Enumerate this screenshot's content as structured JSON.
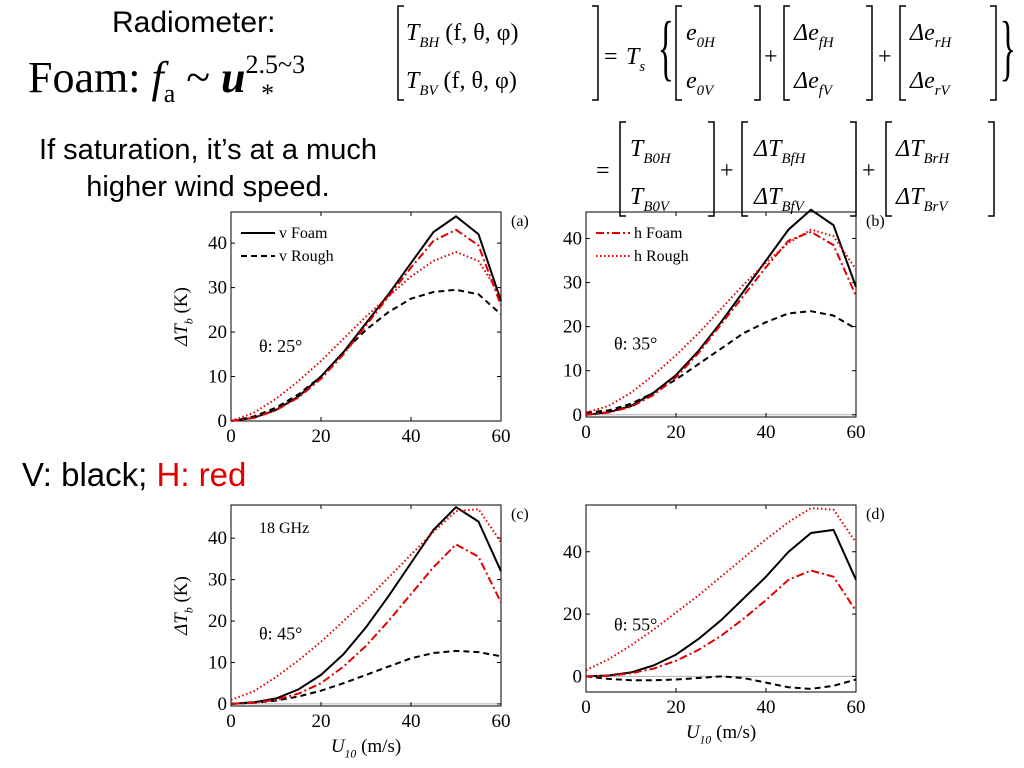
{
  "header": {
    "radiometer_label": "Radiometer:",
    "foam_label": "Foam:",
    "foam_var": "f",
    "foam_sub": "a",
    "foam_rel": "~",
    "foam_u": "u",
    "foam_exponent": "2.5~3",
    "foam_u_sub": "*",
    "saturation_note": "If saturation, it’s at a much higher wind speed.",
    "legend_black": "V: black;",
    "legend_red": "H: red"
  },
  "equation": {
    "lhs_top": "T_BH (f, θ, φ)",
    "lhs_bottom": "T_BV (f, θ, φ)",
    "ts": "T_s",
    "e0": [
      "e_0H",
      "e_0V"
    ],
    "def": [
      "Δe_fH",
      "Δe_fV"
    ],
    "der": [
      "Δe_rH",
      "Δe_rV"
    ],
    "tb0": [
      "T_B0H",
      "T_B0V"
    ],
    "dtbf": [
      "ΔT_BfH",
      "ΔT_BfV"
    ],
    "dtbr": [
      "ΔT_BrH",
      "ΔT_BrV"
    ]
  },
  "colors": {
    "black": "#000000",
    "red": "#e00000",
    "zero_line": "#b0b0b0"
  },
  "chart_data": [
    {
      "type": "line",
      "panel_tag": "(a)",
      "annotation": "θ: 25°",
      "xlabel": "",
      "ylabel": "ΔT_b (K)",
      "xlim": [
        0,
        60
      ],
      "ylim": [
        0,
        47
      ],
      "xticks": [
        0,
        20,
        40,
        60
      ],
      "yticks": [
        0,
        10,
        20,
        30,
        40
      ],
      "legend": [
        {
          "label": "v Foam",
          "series": "v Foam"
        },
        {
          "label": "v Rough",
          "series": "v Rough"
        }
      ],
      "series": [
        {
          "name": "v Foam",
          "color": "#000000",
          "dash": "solid",
          "x": [
            0,
            5,
            10,
            15,
            20,
            25,
            30,
            35,
            40,
            45,
            50,
            55,
            60
          ],
          "y": [
            0,
            0.7,
            2.5,
            5.5,
            10,
            15.5,
            22,
            28.5,
            35.5,
            42.5,
            46,
            42,
            27
          ]
        },
        {
          "name": "v Rough",
          "color": "#000000",
          "dash": "dashed",
          "x": [
            0,
            5,
            10,
            15,
            20,
            25,
            30,
            35,
            40,
            45,
            50,
            55,
            60
          ],
          "y": [
            0,
            1,
            3,
            6,
            10,
            15.5,
            20.5,
            24.5,
            27.5,
            29,
            29.5,
            28.5,
            24
          ]
        },
        {
          "name": "h Foam",
          "color": "#e00000",
          "dash": "dashdot",
          "x": [
            0,
            5,
            10,
            15,
            20,
            25,
            30,
            35,
            40,
            45,
            50,
            55,
            60
          ],
          "y": [
            0,
            0.7,
            2.4,
            5.3,
            9.5,
            15,
            21.5,
            28,
            34.5,
            40.5,
            43,
            39.5,
            26
          ]
        },
        {
          "name": "h Rough",
          "color": "#e00000",
          "dash": "dotted",
          "x": [
            0,
            5,
            10,
            15,
            20,
            25,
            30,
            35,
            40,
            45,
            50,
            55,
            60
          ],
          "y": [
            0,
            1.8,
            5,
            9,
            13.5,
            18.5,
            23.5,
            28,
            32.5,
            36,
            38,
            36,
            28
          ]
        }
      ]
    },
    {
      "type": "line",
      "panel_tag": "(b)",
      "annotation": "θ: 35°",
      "xlabel": "",
      "ylabel": "",
      "xlim": [
        0,
        60
      ],
      "ylim": [
        -0.5,
        46
      ],
      "xticks": [
        0,
        20,
        40,
        60
      ],
      "yticks": [
        0,
        10,
        20,
        30,
        40
      ],
      "legend": [
        {
          "label": "h Foam",
          "series": "h Foam"
        },
        {
          "label": "h Rough",
          "series": "h Rough"
        }
      ],
      "series": [
        {
          "name": "v Foam",
          "color": "#000000",
          "dash": "solid",
          "x": [
            0,
            5,
            10,
            15,
            20,
            25,
            30,
            35,
            40,
            45,
            50,
            55,
            60
          ],
          "y": [
            0,
            0.6,
            2,
            5,
            9,
            14.5,
            21,
            28,
            35,
            42,
            46.5,
            43,
            29
          ]
        },
        {
          "name": "v Rough",
          "color": "#000000",
          "dash": "dashed",
          "x": [
            0,
            5,
            10,
            15,
            20,
            25,
            30,
            35,
            40,
            45,
            50,
            55,
            60
          ],
          "y": [
            0.5,
            1,
            2.5,
            5,
            8,
            11.5,
            15,
            18.5,
            21,
            23,
            23.5,
            22.5,
            19.5
          ]
        },
        {
          "name": "h Foam",
          "color": "#e00000",
          "dash": "dashdot",
          "x": [
            0,
            5,
            10,
            15,
            20,
            25,
            30,
            35,
            40,
            45,
            50,
            55,
            60
          ],
          "y": [
            0,
            0.5,
            1.8,
            4.5,
            8.5,
            14,
            20.5,
            27,
            33.5,
            39.5,
            41.5,
            38.5,
            27
          ]
        },
        {
          "name": "h Rough",
          "color": "#e00000",
          "dash": "dotted",
          "x": [
            0,
            5,
            10,
            15,
            20,
            25,
            30,
            35,
            40,
            45,
            50,
            55,
            60
          ],
          "y": [
            0.5,
            2,
            5,
            9,
            13.5,
            18.5,
            24,
            29.5,
            34.5,
            39,
            42,
            40.5,
            33
          ]
        }
      ]
    },
    {
      "type": "line",
      "panel_tag": "(c)",
      "annotation": "θ: 45°",
      "sublabel": "18 GHz",
      "xlabel": "U_10 (m/s)",
      "ylabel": "ΔT_b (K)",
      "xlim": [
        0,
        60
      ],
      "ylim": [
        -0.5,
        48
      ],
      "xticks": [
        0,
        20,
        40,
        60
      ],
      "yticks": [
        0,
        10,
        20,
        30,
        40
      ],
      "series": [
        {
          "name": "v Foam",
          "color": "#000000",
          "dash": "solid",
          "x": [
            0,
            5,
            10,
            15,
            20,
            25,
            30,
            35,
            40,
            45,
            50,
            55,
            60
          ],
          "y": [
            0,
            0.4,
            1.3,
            3.5,
            7,
            12,
            18.5,
            26,
            34,
            42,
            47.5,
            44,
            32
          ]
        },
        {
          "name": "v Rough",
          "color": "#000000",
          "dash": "dashed",
          "x": [
            0,
            5,
            10,
            15,
            20,
            25,
            30,
            35,
            40,
            45,
            50,
            55,
            60
          ],
          "y": [
            0,
            0.3,
            0.8,
            1.8,
            3.2,
            5,
            7,
            9,
            11,
            12.3,
            12.8,
            12.5,
            11.5
          ]
        },
        {
          "name": "h Foam",
          "color": "#e00000",
          "dash": "dashdot",
          "x": [
            0,
            5,
            10,
            15,
            20,
            25,
            30,
            35,
            40,
            45,
            50,
            55,
            60
          ],
          "y": [
            0,
            0.3,
            1,
            2.5,
            5,
            9,
            14,
            20,
            26.5,
            33,
            38.5,
            35.5,
            24.5
          ]
        },
        {
          "name": "h Rough",
          "color": "#e00000",
          "dash": "dotted",
          "x": [
            0,
            5,
            10,
            15,
            20,
            25,
            30,
            35,
            40,
            45,
            50,
            55,
            60
          ],
          "y": [
            1,
            3,
            6.5,
            10.5,
            15,
            20,
            25,
            30.5,
            36,
            41.5,
            46.5,
            47,
            39
          ]
        }
      ]
    },
    {
      "type": "line",
      "panel_tag": "(d)",
      "annotation": "θ: 55°",
      "xlabel": "U_10 (m/s)",
      "ylabel": "",
      "xlim": [
        0,
        60
      ],
      "ylim": [
        -5,
        55
      ],
      "xticks": [
        0,
        20,
        40,
        60
      ],
      "yticks": [
        0,
        20,
        40
      ],
      "series": [
        {
          "name": "v Foam",
          "color": "#000000",
          "dash": "solid",
          "x": [
            0,
            5,
            10,
            15,
            20,
            25,
            30,
            35,
            40,
            45,
            50,
            55,
            60
          ],
          "y": [
            0,
            0.3,
            1.3,
            3.5,
            7,
            12,
            18,
            25,
            32,
            40,
            46,
            47,
            31
          ]
        },
        {
          "name": "v Rough",
          "color": "#000000",
          "dash": "dashed",
          "x": [
            0,
            5,
            10,
            15,
            20,
            25,
            30,
            35,
            40,
            45,
            50,
            55,
            60
          ],
          "y": [
            0,
            -0.8,
            -1.2,
            -1.2,
            -1,
            -0.5,
            0,
            -0.5,
            -2,
            -3.5,
            -4,
            -3,
            -1
          ]
        },
        {
          "name": "h Foam",
          "color": "#e00000",
          "dash": "dashdot",
          "x": [
            0,
            5,
            10,
            15,
            20,
            25,
            30,
            35,
            40,
            45,
            50,
            55,
            60
          ],
          "y": [
            0,
            0.2,
            1,
            2.5,
            5,
            8.5,
            13,
            18.5,
            24.5,
            31,
            34,
            32,
            21
          ]
        },
        {
          "name": "h Rough",
          "color": "#e00000",
          "dash": "dotted",
          "x": [
            0,
            5,
            10,
            15,
            20,
            25,
            30,
            35,
            40,
            45,
            50,
            55,
            60
          ],
          "y": [
            2,
            5.5,
            10,
            15,
            20.5,
            26,
            32,
            38,
            44,
            49.5,
            54,
            53.5,
            43
          ]
        }
      ]
    }
  ]
}
